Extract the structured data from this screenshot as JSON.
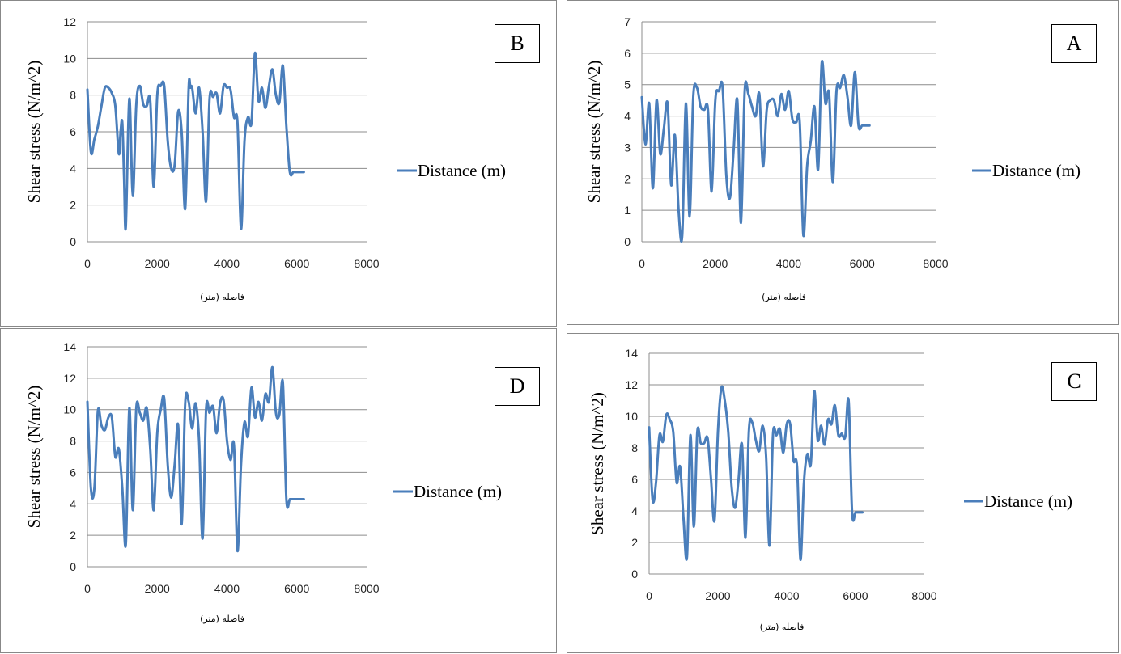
{
  "series_color": "#4a7ebb",
  "chart_data": [
    {
      "type": "line",
      "panel_label": "B",
      "ylabel": "Shear stress (N/m^2)",
      "xlabel": "فاصله (متر)",
      "legend": "Distance (m)",
      "legend_position": "right",
      "grid": true,
      "xlim": [
        0,
        8000
      ],
      "ylim": [
        0,
        12
      ],
      "xticks": [
        "0",
        "2000",
        "4000",
        "6000",
        "8000"
      ],
      "yticks": [
        "0",
        "2",
        "4",
        "6",
        "8",
        "10",
        "12"
      ],
      "x": [
        0,
        100,
        200,
        300,
        400,
        500,
        600,
        700,
        800,
        900,
        950,
        1000,
        1050,
        1100,
        1200,
        1300,
        1400,
        1500,
        1600,
        1700,
        1800,
        1900,
        2000,
        2100,
        2200,
        2300,
        2400,
        2500,
        2600,
        2700,
        2800,
        2900,
        2950,
        3000,
        3100,
        3200,
        3300,
        3400,
        3500,
        3600,
        3700,
        3800,
        3900,
        4000,
        4100,
        4200,
        4300,
        4400,
        4500,
        4600,
        4700,
        4800,
        4900,
        5000,
        5100,
        5200,
        5300,
        5400,
        5500,
        5600,
        5700,
        5800,
        5900,
        6000,
        6100,
        6200
      ],
      "y": [
        8.3,
        4.9,
        5.6,
        6.3,
        7.4,
        8.4,
        8.4,
        8.1,
        7.4,
        4.8,
        6.0,
        6.5,
        3.5,
        0.8,
        7.8,
        2.5,
        7.5,
        8.5,
        7.5,
        7.4,
        7.7,
        3.0,
        8.0,
        8.5,
        8.5,
        5.5,
        4.0,
        4.2,
        7.1,
        6.0,
        1.8,
        8.4,
        8.4,
        8.4,
        7.0,
        8.4,
        6.0,
        2.2,
        7.8,
        7.9,
        8.1,
        7.0,
        8.5,
        8.4,
        8.3,
        6.8,
        6.5,
        0.7,
        5.5,
        6.8,
        6.5,
        10.3,
        7.7,
        8.4,
        7.3,
        8.5,
        9.4,
        8.0,
        7.6,
        9.6,
        6.3,
        3.8,
        3.8,
        3.8,
        3.8,
        3.8
      ]
    },
    {
      "type": "line",
      "panel_label": "A",
      "ylabel": "Shear stress (N/m^2)",
      "xlabel": "فاصله (متر)",
      "legend": "Distance (m)",
      "legend_position": "right",
      "grid": true,
      "xlim": [
        0,
        8000
      ],
      "ylim": [
        0,
        7
      ],
      "xticks": [
        "0",
        "2000",
        "4000",
        "6000",
        "8000"
      ],
      "yticks": [
        "0",
        "1",
        "2",
        "3",
        "4",
        "5",
        "6",
        "7"
      ],
      "x": [
        0,
        100,
        200,
        300,
        400,
        500,
        600,
        700,
        800,
        900,
        1000,
        1100,
        1200,
        1300,
        1400,
        1500,
        1600,
        1700,
        1800,
        1900,
        2000,
        2100,
        2200,
        2300,
        2400,
        2500,
        2600,
        2700,
        2800,
        2900,
        3000,
        3100,
        3200,
        3300,
        3400,
        3500,
        3600,
        3700,
        3800,
        3900,
        4000,
        4100,
        4200,
        4300,
        4400,
        4500,
        4600,
        4700,
        4800,
        4900,
        5000,
        5100,
        5200,
        5300,
        5400,
        5500,
        5600,
        5700,
        5800,
        5900,
        6000,
        6100,
        6200
      ],
      "y": [
        4.6,
        3.1,
        4.4,
        1.7,
        4.5,
        2.8,
        3.6,
        4.4,
        1.8,
        3.4,
        1.0,
        0.2,
        4.4,
        0.8,
        4.6,
        4.9,
        4.3,
        4.2,
        4.2,
        1.6,
        4.5,
        4.8,
        4.9,
        2.1,
        1.4,
        2.9,
        4.5,
        0.6,
        4.8,
        4.7,
        4.3,
        4.0,
        4.7,
        2.4,
        4.2,
        4.5,
        4.5,
        4.0,
        4.7,
        4.2,
        4.8,
        3.9,
        3.8,
        3.8,
        0.2,
        2.4,
        3.2,
        4.3,
        2.3,
        5.7,
        4.4,
        4.7,
        1.9,
        4.8,
        4.9,
        5.3,
        4.6,
        3.7,
        5.4,
        3.7,
        3.7,
        3.7,
        3.7
      ]
    },
    {
      "type": "line",
      "panel_label": "D",
      "ylabel": "Shear stress (N/m^2)",
      "xlabel": "فاصله (متر)",
      "legend": "Distance (m)",
      "legend_position": "right",
      "grid": true,
      "xlim": [
        0,
        8000
      ],
      "ylim": [
        0,
        14
      ],
      "xticks": [
        "0",
        "2000",
        "4000",
        "6000",
        "8000"
      ],
      "yticks": [
        "0",
        "2",
        "4",
        "6",
        "8",
        "10",
        "12",
        "14"
      ],
      "x": [
        0,
        100,
        200,
        300,
        400,
        500,
        600,
        700,
        800,
        900,
        1000,
        1100,
        1200,
        1300,
        1400,
        1500,
        1600,
        1700,
        1800,
        1900,
        2000,
        2100,
        2200,
        2300,
        2400,
        2500,
        2600,
        2700,
        2800,
        2900,
        3000,
        3100,
        3200,
        3300,
        3400,
        3500,
        3600,
        3700,
        3800,
        3900,
        4000,
        4100,
        4200,
        4300,
        4400,
        4500,
        4600,
        4700,
        4800,
        4900,
        5000,
        5100,
        5200,
        5300,
        5400,
        5500,
        5600,
        5700,
        5800,
        5900,
        6000,
        6100,
        6200
      ],
      "y": [
        10.5,
        5.0,
        5.0,
        9.9,
        9.0,
        8.7,
        9.5,
        9.5,
        7.0,
        7.5,
        5.0,
        1.4,
        10.1,
        3.6,
        10.1,
        9.8,
        9.3,
        10.1,
        7.5,
        3.6,
        8.5,
        10.0,
        10.7,
        6.5,
        4.4,
        6.5,
        9.0,
        2.7,
        10.4,
        10.5,
        8.8,
        10.4,
        8.0,
        1.8,
        10.0,
        9.8,
        10.2,
        8.5,
        10.4,
        10.6,
        8.0,
        6.8,
        7.7,
        1.0,
        6.5,
        9.2,
        8.3,
        11.4,
        9.5,
        10.5,
        9.3,
        11.0,
        10.5,
        12.7,
        9.8,
        9.7,
        11.7,
        4.3,
        4.3,
        4.3,
        4.3,
        4.3,
        4.3
      ]
    },
    {
      "type": "line",
      "panel_label": "C",
      "ylabel": "Shear stress (N/m^2)",
      "xlabel": "فاصله (متر)",
      "legend": "Distance (m)",
      "legend_position": "right",
      "grid": true,
      "xlim": [
        0,
        8000
      ],
      "ylim": [
        0,
        14
      ],
      "xticks": [
        "0",
        "2000",
        "4000",
        "6000",
        "8000"
      ],
      "yticks": [
        "0",
        "2",
        "4",
        "6",
        "8",
        "10",
        "12",
        "14"
      ],
      "x": [
        0,
        100,
        200,
        300,
        400,
        500,
        600,
        700,
        800,
        900,
        1000,
        1100,
        1200,
        1300,
        1400,
        1500,
        1600,
        1700,
        1800,
        1900,
        2000,
        2100,
        2200,
        2300,
        2400,
        2500,
        2600,
        2700,
        2800,
        2900,
        3000,
        3100,
        3200,
        3300,
        3400,
        3500,
        3600,
        3700,
        3800,
        3900,
        4000,
        4100,
        4200,
        4300,
        4400,
        4500,
        4600,
        4700,
        4800,
        4900,
        5000,
        5100,
        5200,
        5300,
        5400,
        5500,
        5600,
        5700,
        5800,
        5900,
        6000,
        6100,
        6200
      ],
      "y": [
        9.3,
        4.7,
        5.8,
        8.8,
        8.4,
        10.1,
        9.8,
        9.0,
        5.8,
        6.8,
        3.5,
        1.1,
        8.8,
        3.0,
        9.0,
        8.3,
        8.3,
        8.6,
        6.0,
        3.4,
        9.0,
        11.8,
        11.0,
        9.0,
        5.5,
        4.2,
        6.0,
        8.2,
        2.3,
        9.1,
        9.6,
        8.5,
        7.8,
        9.4,
        7.5,
        1.8,
        8.8,
        8.8,
        9.2,
        7.7,
        9.5,
        9.5,
        7.2,
        6.8,
        0.9,
        5.8,
        7.6,
        7.0,
        11.6,
        8.5,
        9.4,
        8.2,
        9.8,
        9.5,
        10.7,
        8.8,
        8.9,
        8.7,
        11.0,
        3.9,
        3.9,
        3.9,
        3.9
      ]
    }
  ]
}
